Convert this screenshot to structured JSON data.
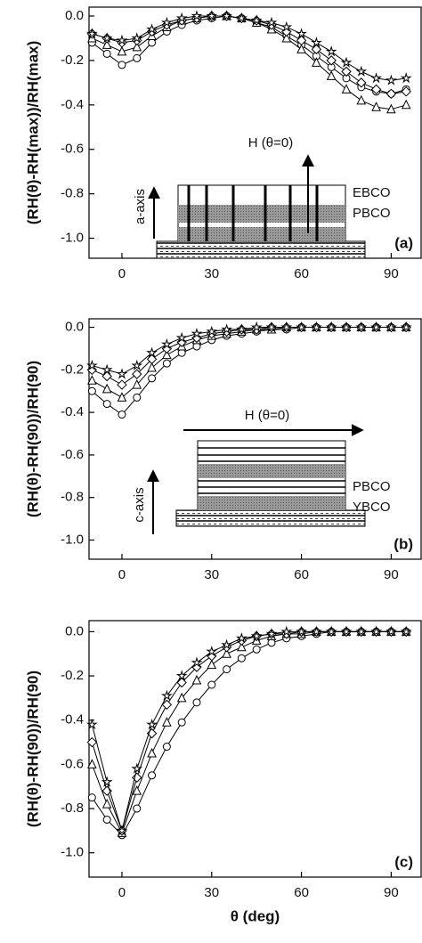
{
  "chart_data": [
    {
      "type": "line",
      "panel_label": "(a)",
      "ylabel": "(RH(θ)-RH(max))/RH(max)",
      "annotations": [
        "H (θ=0)",
        "EBCO",
        "PBCO",
        "a-axis"
      ],
      "x": [
        -10,
        -5,
        0,
        5,
        10,
        15,
        20,
        25,
        30,
        35,
        40,
        45,
        50,
        55,
        60,
        65,
        70,
        75,
        80,
        85,
        90,
        95
      ],
      "xlim": [
        -11,
        100
      ],
      "xticks": [
        0,
        30,
        60,
        90
      ],
      "ylim": [
        -1.09,
        0.04
      ],
      "yticks": [
        {
          "value": -1,
          "label": "-1.0"
        },
        -0.8,
        -0.6,
        -0.4,
        -0.2,
        {
          "value": 0,
          "label": "0.0"
        }
      ],
      "series": [
        {
          "marker": "circle",
          "color": "#000000",
          "values": [
            -0.12,
            -0.17,
            -0.22,
            -0.19,
            -0.12,
            -0.07,
            -0.04,
            -0.02,
            -0.01,
            0,
            -0.01,
            -0.03,
            -0.05,
            -0.09,
            -0.13,
            -0.18,
            -0.23,
            -0.28,
            -0.32,
            -0.34,
            -0.35,
            -0.33
          ]
        },
        {
          "marker": "triangle",
          "color": "#000000",
          "values": [
            -0.1,
            -0.13,
            -0.16,
            -0.14,
            -0.09,
            -0.05,
            -0.02,
            -0.01,
            0,
            0,
            -0.01,
            -0.03,
            -0.06,
            -0.1,
            -0.15,
            -0.21,
            -0.27,
            -0.33,
            -0.38,
            -0.41,
            -0.42,
            -0.4
          ]
        },
        {
          "marker": "diamond",
          "color": "#000000",
          "values": [
            -0.08,
            -0.1,
            -0.12,
            -0.11,
            -0.07,
            -0.04,
            -0.02,
            -0.01,
            0,
            0,
            -0.01,
            -0.02,
            -0.04,
            -0.07,
            -0.11,
            -0.15,
            -0.2,
            -0.25,
            -0.3,
            -0.33,
            -0.35,
            -0.34
          ]
        },
        {
          "marker": "star",
          "color": "#000000",
          "values": [
            -0.08,
            -0.1,
            -0.11,
            -0.1,
            -0.06,
            -0.03,
            -0.01,
            0,
            0,
            0,
            -0.01,
            -0.02,
            -0.03,
            -0.05,
            -0.08,
            -0.12,
            -0.16,
            -0.21,
            -0.25,
            -0.28,
            -0.29,
            -0.28
          ]
        }
      ]
    },
    {
      "type": "line",
      "panel_label": "(b)",
      "ylabel": "(RH(θ)-RH(90))/RH(90)",
      "annotations": [
        "H (θ=0)",
        "c-axis",
        "PBCO",
        "YBCO"
      ],
      "x": [
        -10,
        -5,
        0,
        5,
        10,
        15,
        20,
        25,
        30,
        35,
        40,
        45,
        50,
        55,
        60,
        65,
        70,
        75,
        80,
        85,
        90,
        95
      ],
      "xlim": [
        -11,
        100
      ],
      "xticks": [
        0,
        30,
        60,
        90
      ],
      "ylim": [
        -1.09,
        0.04
      ],
      "yticks": [
        {
          "value": -1,
          "label": "-1.0"
        },
        -0.8,
        -0.6,
        -0.4,
        -0.2,
        {
          "value": 0,
          "label": "0.0"
        }
      ],
      "series": [
        {
          "marker": "circle",
          "color": "#000000",
          "values": [
            -0.3,
            -0.36,
            -0.41,
            -0.33,
            -0.24,
            -0.17,
            -0.12,
            -0.09,
            -0.06,
            -0.04,
            -0.03,
            -0.02,
            -0.01,
            -0.01,
            0,
            0,
            0,
            0,
            0,
            0,
            0,
            0
          ]
        },
        {
          "marker": "triangle",
          "color": "#000000",
          "values": [
            -0.25,
            -0.29,
            -0.33,
            -0.27,
            -0.19,
            -0.13,
            -0.09,
            -0.06,
            -0.04,
            -0.03,
            -0.02,
            -0.01,
            -0.01,
            0,
            0,
            0,
            0,
            0,
            0,
            0,
            0,
            0
          ]
        },
        {
          "marker": "diamond",
          "color": "#000000",
          "values": [
            -0.2,
            -0.23,
            -0.27,
            -0.22,
            -0.15,
            -0.1,
            -0.07,
            -0.05,
            -0.03,
            -0.02,
            -0.01,
            -0.01,
            0,
            0,
            0,
            0,
            0,
            0,
            0,
            0,
            0,
            0
          ]
        },
        {
          "marker": "star",
          "color": "#000000",
          "values": [
            -0.18,
            -0.2,
            -0.22,
            -0.18,
            -0.12,
            -0.08,
            -0.05,
            -0.03,
            -0.02,
            -0.01,
            -0.01,
            0,
            0,
            0,
            0,
            0,
            0,
            0,
            0,
            0,
            0,
            0
          ]
        }
      ]
    },
    {
      "type": "line",
      "panel_label": "(c)",
      "ylabel": "(RH(θ)-RH(90))/RH(90)",
      "xlabel": "θ (deg)",
      "x": [
        -10,
        -5,
        0,
        5,
        10,
        15,
        20,
        25,
        30,
        35,
        40,
        45,
        50,
        55,
        60,
        65,
        70,
        75,
        80,
        85,
        90,
        95
      ],
      "xlim": [
        -11,
        100
      ],
      "xticks": [
        0,
        30,
        60,
        90
      ],
      "ylim": [
        -1.11,
        0.05
      ],
      "yticks": [
        {
          "value": -1,
          "label": "-1.0"
        },
        -0.8,
        -0.6,
        -0.4,
        -0.2,
        {
          "value": 0,
          "label": "0.0"
        }
      ],
      "series": [
        {
          "marker": "circle",
          "color": "#000000",
          "values": [
            -0.75,
            -0.85,
            -0.92,
            -0.8,
            -0.65,
            -0.52,
            -0.41,
            -0.32,
            -0.24,
            -0.17,
            -0.12,
            -0.08,
            -0.05,
            -0.03,
            -0.02,
            -0.01,
            0,
            0,
            0,
            0,
            0,
            0
          ]
        },
        {
          "marker": "triangle",
          "color": "#000000",
          "values": [
            -0.6,
            -0.78,
            -0.91,
            -0.72,
            -0.55,
            -0.41,
            -0.3,
            -0.22,
            -0.15,
            -0.1,
            -0.07,
            -0.04,
            -0.02,
            -0.01,
            -0.01,
            0,
            0,
            0,
            0,
            0,
            0,
            0
          ]
        },
        {
          "marker": "diamond",
          "color": "#000000",
          "values": [
            -0.5,
            -0.72,
            -0.9,
            -0.66,
            -0.46,
            -0.33,
            -0.23,
            -0.16,
            -0.11,
            -0.07,
            -0.04,
            -0.02,
            -0.01,
            -0.01,
            0,
            0,
            0,
            0,
            0,
            0,
            0,
            0
          ]
        },
        {
          "marker": "star",
          "color": "#000000",
          "values": [
            -0.42,
            -0.68,
            -0.9,
            -0.62,
            -0.42,
            -0.29,
            -0.2,
            -0.14,
            -0.09,
            -0.06,
            -0.03,
            -0.02,
            -0.01,
            0,
            0,
            0,
            0,
            0,
            0,
            0,
            0,
            0
          ]
        }
      ]
    }
  ]
}
